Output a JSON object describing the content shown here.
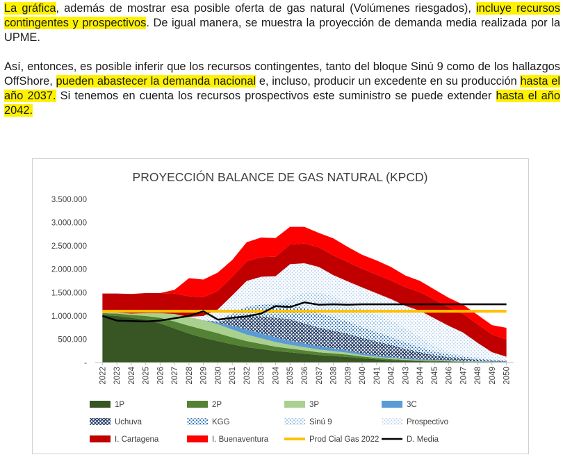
{
  "text": {
    "p1": [
      {
        "t": "La gráfica",
        "hl": true
      },
      {
        "t": ", además de mostrar esa posible oferta de gas natural (Volúmenes riesgados), ",
        "hl": false
      },
      {
        "t": "incluye recursos contingentes y prospectivos",
        "hl": true
      },
      {
        "t": ". De igual manera, se muestra la proyección de demanda media realizada por la UPME.",
        "hl": false
      }
    ],
    "p2": [
      {
        "t": "Así, entonces, es posible inferir que los recursos contingentes, tanto del bloque Sinú 9 como de los hallazgos OffShore, ",
        "hl": false
      },
      {
        "t": "pueden abastecer la demanda nacional",
        "hl": true
      },
      {
        "t": " e, incluso, producir un excedente en su producción ",
        "hl": false
      },
      {
        "t": "hasta el año 2037.",
        "hl": true
      },
      {
        "t": " Si tenemos en cuenta los recursos prospectivos este suministro se puede extender ",
        "hl": false
      },
      {
        "t": "hasta el año 2042.",
        "hl": true
      }
    ]
  },
  "colors": {
    "1P": "#375623",
    "2P": "#548235",
    "3P": "#a9d08e",
    "3C": "#5b9bd5",
    "Uchuva": "#1f3864",
    "KGG": "#2e75b6",
    "Sinu9": "#9dc3e6",
    "Prospectivo": "#c5d9f1",
    "ICartagena": "#c00000",
    "IBuenaventura": "#ff0000",
    "ProdCial": "#ffc000",
    "DMedia": "#000000"
  },
  "chart_data": {
    "type": "area",
    "title": "PROYECCIÓN BALANCE DE GAS NATURAL (KPCD)",
    "ylim": [
      0,
      3500000
    ],
    "yticks": [
      {
        "v": 0,
        "label": "-"
      },
      {
        "v": 500000,
        "label": "500.000"
      },
      {
        "v": 1000000,
        "label": "1.000.000"
      },
      {
        "v": 1500000,
        "label": "1.500.000"
      },
      {
        "v": 2000000,
        "label": "2.000.000"
      },
      {
        "v": 2500000,
        "label": "2.500.000"
      },
      {
        "v": 3000000,
        "label": "3.000.000"
      },
      {
        "v": 3500000,
        "label": "3.500.000"
      }
    ],
    "categories": [
      "2022",
      "2023",
      "2024",
      "2025",
      "2026",
      "2027",
      "2028",
      "2029",
      "2030",
      "2031",
      "2032",
      "2033",
      "2034",
      "2035",
      "2036",
      "2037",
      "2038",
      "2039",
      "2040",
      "2041",
      "2042",
      "2043",
      "2044",
      "2045",
      "2046",
      "2047",
      "2048",
      "2049",
      "2050"
    ],
    "stacked_series": [
      {
        "name": "1P",
        "key": "1P",
        "pattern": "solid",
        "values": [
          1020000,
          1000000,
          960000,
          920000,
          840000,
          730000,
          620000,
          530000,
          460000,
          390000,
          330000,
          290000,
          250000,
          220000,
          190000,
          160000,
          140000,
          120000,
          90000,
          70000,
          50000,
          40000,
          30000,
          25000,
          20000,
          15000,
          10000,
          8000,
          5000
        ]
      },
      {
        "name": "2P",
        "key": "2P",
        "pattern": "solid",
        "values": [
          40000,
          50000,
          60000,
          80000,
          120000,
          150000,
          170000,
          180000,
          170000,
          150000,
          130000,
          110000,
          90000,
          80000,
          70000,
          60000,
          55000,
          50000,
          40000,
          30000,
          25000,
          20000,
          15000,
          12000,
          10000,
          8000,
          6000,
          5000,
          4000
        ]
      },
      {
        "name": "3P",
        "key": "3P",
        "pattern": "solid",
        "values": [
          20000,
          20000,
          30000,
          60000,
          100000,
          160000,
          190000,
          200000,
          190000,
          170000,
          140000,
          120000,
          100000,
          80000,
          70000,
          60000,
          50000,
          40000,
          30000,
          25000,
          20000,
          15000,
          12000,
          10000,
          8000,
          6000,
          5000,
          4000,
          3000
        ]
      },
      {
        "name": "3C",
        "key": "3C",
        "pattern": "solid",
        "values": [
          0,
          0,
          0,
          0,
          0,
          0,
          0,
          0,
          30000,
          80000,
          110000,
          110000,
          100000,
          90000,
          80000,
          70000,
          60000,
          50000,
          40000,
          30000,
          25000,
          20000,
          15000,
          12000,
          10000,
          8000,
          6000,
          5000,
          4000
        ]
      },
      {
        "name": "Uchuva",
        "key": "Uchuva",
        "pattern": "cross",
        "values": [
          0,
          0,
          0,
          0,
          0,
          0,
          0,
          0,
          20000,
          150000,
          280000,
          360000,
          420000,
          460000,
          430000,
          400000,
          380000,
          360000,
          330000,
          300000,
          260000,
          200000,
          150000,
          100000,
          70000,
          50000,
          30000,
          20000,
          15000
        ]
      },
      {
        "name": "KGG",
        "key": "KGG",
        "pattern": "dots",
        "values": [
          0,
          0,
          0,
          0,
          0,
          0,
          0,
          0,
          20000,
          120000,
          210000,
          260000,
          300000,
          330000,
          330000,
          310000,
          290000,
          260000,
          230000,
          200000,
          170000,
          140000,
          110000,
          80000,
          60000,
          45000,
          30000,
          20000,
          15000
        ]
      },
      {
        "name": "Sinú 9",
        "key": "Sinu9",
        "pattern": "dots",
        "values": [
          0,
          0,
          0,
          0,
          0,
          0,
          0,
          0,
          0,
          0,
          0,
          0,
          0,
          150000,
          330000,
          450000,
          450000,
          410000,
          400000,
          370000,
          350000,
          300000,
          220000,
          120000,
          60000,
          30000,
          15000,
          10000,
          8000
        ]
      },
      {
        "name": "Prospectivo",
        "key": "Prospectivo",
        "pattern": "dots",
        "values": [
          0,
          0,
          0,
          0,
          0,
          0,
          0,
          90000,
          250000,
          380000,
          550000,
          590000,
          590000,
          700000,
          630000,
          540000,
          450000,
          450000,
          450000,
          460000,
          460000,
          480000,
          560000,
          590000,
          550000,
          480000,
          320000,
          150000,
          70000
        ]
      },
      {
        "name": "I. Cartagena",
        "key": "ICartagena",
        "pattern": "solid",
        "values": [
          400000,
          410000,
          420000,
          430000,
          430000,
          440000,
          440000,
          400000,
          400000,
          400000,
          420000,
          420000,
          420000,
          420000,
          420000,
          420000,
          420000,
          420000,
          400000,
          400000,
          400000,
          400000,
          400000,
          400000,
          400000,
          400000,
          400000,
          380000,
          370000
        ]
      },
      {
        "name": "I. Buenaventura",
        "key": "IBuenaventura",
        "pattern": "solid",
        "values": [
          0,
          0,
          0,
          0,
          0,
          80000,
          390000,
          380000,
          390000,
          360000,
          410000,
          420000,
          400000,
          380000,
          360000,
          310000,
          370000,
          320000,
          300000,
          305000,
          290000,
          250000,
          240000,
          220000,
          200000,
          200000,
          200000,
          200000,
          250000
        ]
      }
    ],
    "line_series": [
      {
        "name": "Prod Cial Gas 2022",
        "key": "ProdCial",
        "width": 4,
        "values": [
          1100000,
          1100000,
          1100000,
          1100000,
          1100000,
          1100000,
          1100000,
          1100000,
          1100000,
          1100000,
          1100000,
          1100000,
          1100000,
          1100000,
          1100000,
          1100000,
          1100000,
          1100000,
          1100000,
          1100000,
          1100000,
          1100000,
          1100000,
          1100000,
          1100000,
          1100000,
          1100000,
          1100000,
          1100000
        ]
      },
      {
        "name": "D. Media",
        "key": "DMedia",
        "width": 2.5,
        "values": [
          1000000,
          900000,
          890000,
          880000,
          900000,
          950000,
          1000000,
          1100000,
          920000,
          960000,
          990000,
          1050000,
          1210000,
          1190000,
          1290000,
          1240000,
          1250000,
          1240000,
          1250000,
          1250000,
          1250000,
          1250000,
          1250000,
          1250000,
          1250000,
          1250000,
          1250000,
          1250000,
          1250000
        ]
      }
    ],
    "legend": [
      {
        "name": "1P",
        "key": "1P",
        "kind": "swatch"
      },
      {
        "name": "2P",
        "key": "2P",
        "kind": "swatch"
      },
      {
        "name": "3P",
        "key": "3P",
        "kind": "swatch"
      },
      {
        "name": "3C",
        "key": "3C",
        "kind": "swatch"
      },
      {
        "name": "Uchuva",
        "key": "Uchuva",
        "kind": "swatch"
      },
      {
        "name": "KGG",
        "key": "KGG",
        "kind": "swatch"
      },
      {
        "name": "Sinú 9",
        "key": "Sinu9",
        "kind": "swatch"
      },
      {
        "name": "Prospectivo",
        "key": "Prospectivo",
        "kind": "swatch"
      },
      {
        "name": "I. Cartagena",
        "key": "ICartagena",
        "kind": "swatch"
      },
      {
        "name": "I. Buenaventura",
        "key": "IBuenaventura",
        "kind": "swatch"
      },
      {
        "name": "Prod Cial Gas 2022",
        "key": "ProdCial",
        "kind": "line"
      },
      {
        "name": "D. Media",
        "key": "DMedia",
        "kind": "line"
      }
    ],
    "legend_position": "bottom",
    "grid": false
  }
}
